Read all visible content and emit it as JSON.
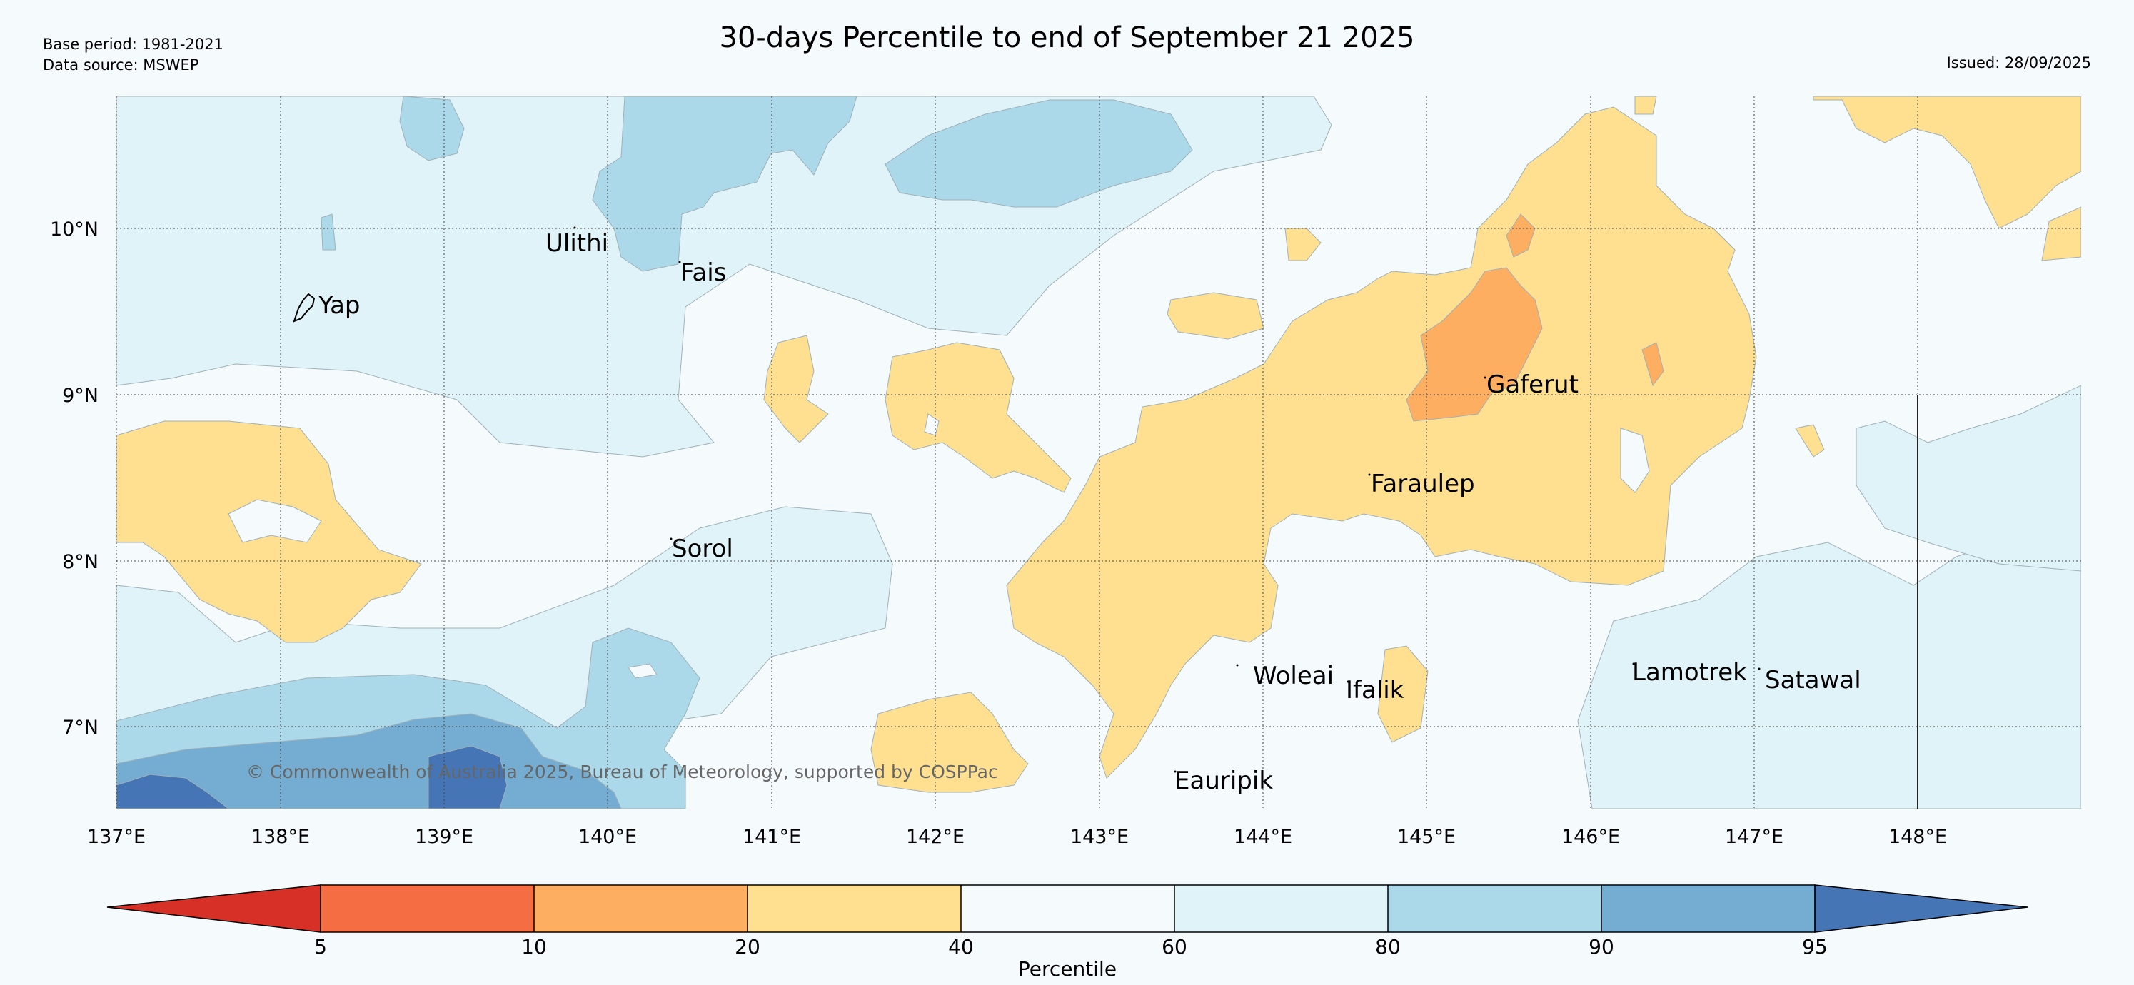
{
  "header": {
    "title": "30-days Percentile to end of September 21 2025",
    "base_period": "Base period: 1981-2021",
    "data_source": "Data source: MSWEP",
    "issued": "Issued: 28/09/2025"
  },
  "map": {
    "copyright": "© Commonwealth of Australia 2025, Bureau of Meteorology, supported by COSPPac",
    "lon_labels": [
      "137°E",
      "138°E",
      "139°E",
      "140°E",
      "141°E",
      "142°E",
      "143°E",
      "144°E",
      "145°E",
      "146°E",
      "147°E",
      "148°E"
    ],
    "lat_labels": [
      "10°N",
      "9°N",
      "8°N",
      "7°N"
    ],
    "places": [
      {
        "name": "Yap"
      },
      {
        "name": "Ulithi"
      },
      {
        "name": "Fais"
      },
      {
        "name": "Sorol"
      },
      {
        "name": "Gaferut"
      },
      {
        "name": "Faraulep"
      },
      {
        "name": "Woleai"
      },
      {
        "name": "Ifalik"
      },
      {
        "name": "Eauripik"
      },
      {
        "name": "Lamotrek"
      },
      {
        "name": "Satawal"
      }
    ]
  },
  "colorbar": {
    "label": "Percentile",
    "ticks": [
      "5",
      "10",
      "20",
      "40",
      "60",
      "80",
      "90",
      "95"
    ],
    "colors": {
      "p0_5": "#d73027",
      "p5_10": "#f46d43",
      "p10_20": "#fdae61",
      "p20_40": "#fee090",
      "p40_60": "#f5fafd",
      "p60_80": "#e0f3f8",
      "p80_90": "#abd9e9",
      "p90_95": "#74add1",
      "p95_100": "#4575b4"
    }
  }
}
